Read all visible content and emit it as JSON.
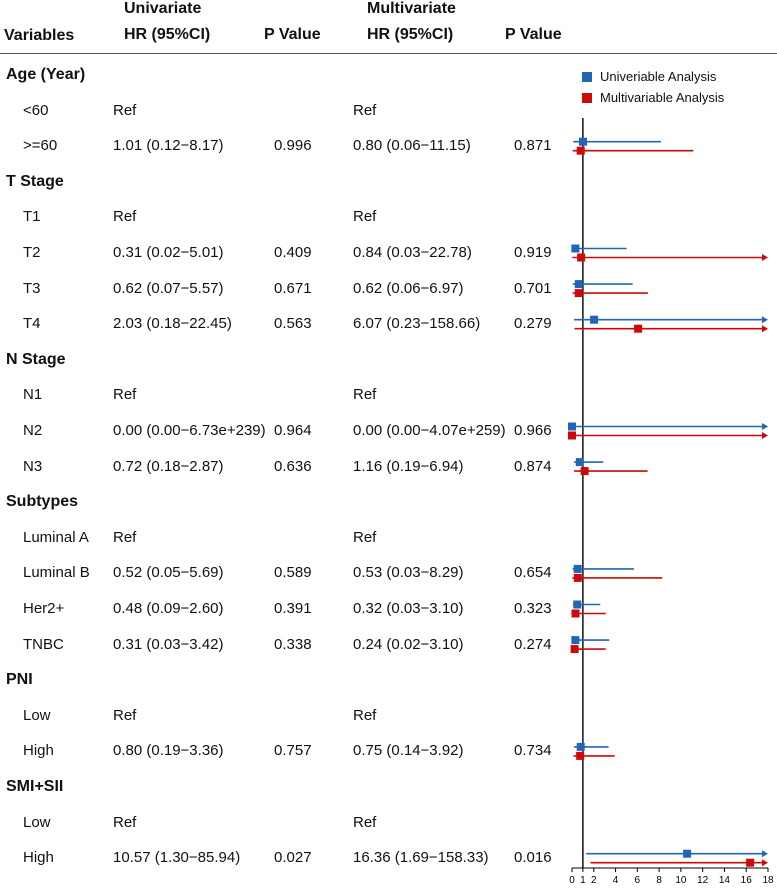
{
  "header": {
    "variables": "Variables",
    "univariate": "Univariate",
    "multivariate": "Multivariate",
    "uni_hr": "HR (95%CI)",
    "uni_p": "P Value",
    "multi_hr": "HR (95%CI)",
    "multi_p": "P Value"
  },
  "legend": {
    "uni_label": "Univeriable Analysis",
    "multi_label": "Multivariable Analysis",
    "uni_color": "#2166b5",
    "multi_color": "#cc0a0a"
  },
  "rows": [
    {
      "label": "Age (Year)",
      "type": "group"
    },
    {
      "label": "<60",
      "type": "sub",
      "uni_text": "Ref",
      "uni_p": "",
      "multi_text": "Ref",
      "multi_p": ""
    },
    {
      "label": ">=60",
      "type": "sub",
      "uni_text": "1.01 (0.12−8.17)",
      "uni_p": "0.996",
      "multi_text": "0.80 (0.06−11.15)",
      "multi_p": "0.871"
    },
    {
      "label": "T Stage",
      "type": "group"
    },
    {
      "label": "T1",
      "type": "sub",
      "uni_text": "Ref",
      "uni_p": "",
      "multi_text": "Ref",
      "multi_p": ""
    },
    {
      "label": "T2",
      "type": "sub",
      "uni_text": "0.31 (0.02−5.01)",
      "uni_p": "0.409",
      "multi_text": "0.84 (0.03−22.78)",
      "multi_p": "0.919"
    },
    {
      "label": "T3",
      "type": "sub",
      "uni_text": "0.62 (0.07−5.57)",
      "uni_p": "0.671",
      "multi_text": "0.62 (0.06−6.97)",
      "multi_p": "0.701"
    },
    {
      "label": "T4",
      "type": "sub",
      "uni_text": "2.03 (0.18−22.45)",
      "uni_p": "0.563",
      "multi_text": "6.07 (0.23−158.66)",
      "multi_p": "0.279"
    },
    {
      "label": "N Stage",
      "type": "group"
    },
    {
      "label": "N1",
      "type": "sub",
      "uni_text": "Ref",
      "uni_p": "",
      "multi_text": "Ref",
      "multi_p": ""
    },
    {
      "label": "N2",
      "type": "sub",
      "uni_text": "0.00 (0.00−6.73e+239)",
      "uni_p": "0.964",
      "multi_text": "0.00 (0.00−4.07e+259)",
      "multi_p": "0.966"
    },
    {
      "label": "N3",
      "type": "sub",
      "uni_text": "0.72 (0.18−2.87)",
      "uni_p": "0.636",
      "multi_text": "1.16 (0.19−6.94)",
      "multi_p": "0.874"
    },
    {
      "label": "Subtypes",
      "type": "group"
    },
    {
      "label": "Luminal A",
      "type": "sub",
      "uni_text": "Ref",
      "uni_p": "",
      "multi_text": "Ref",
      "multi_p": ""
    },
    {
      "label": "Luminal B",
      "type": "sub",
      "uni_text": "0.52 (0.05−5.69)",
      "uni_p": "0.589",
      "multi_text": "0.53 (0.03−8.29)",
      "multi_p": "0.654"
    },
    {
      "label": "Her2+",
      "type": "sub",
      "uni_text": "0.48 (0.09−2.60)",
      "uni_p": "0.391",
      "multi_text": "0.32 (0.03−3.10)",
      "multi_p": "0.323"
    },
    {
      "label": "TNBC",
      "type": "sub",
      "uni_text": "0.31 (0.03−3.42)",
      "uni_p": "0.338",
      "multi_text": "0.24 (0.02−3.10)",
      "multi_p": "0.274"
    },
    {
      "label": "PNI",
      "type": "group"
    },
    {
      "label": "Low",
      "type": "sub",
      "uni_text": "Ref",
      "uni_p": "",
      "multi_text": "Ref",
      "multi_p": ""
    },
    {
      "label": "High",
      "type": "sub",
      "uni_text": "0.80 (0.19−3.36)",
      "uni_p": "0.757",
      "multi_text": "0.75 (0.14−3.92)",
      "multi_p": "0.734"
    },
    {
      "label": "SMI+SII",
      "type": "group"
    },
    {
      "label": "Low",
      "type": "sub",
      "uni_text": "Ref",
      "uni_p": "",
      "multi_text": "Ref",
      "multi_p": ""
    },
    {
      "label": "High",
      "type": "sub",
      "uni_text": "10.57 (1.30−85.94)",
      "uni_p": "0.027",
      "multi_text": "16.36 (1.69−158.33)",
      "multi_p": "0.016"
    }
  ],
  "chart_data": {
    "type": "forest",
    "xlim": [
      0,
      18
    ],
    "reference_line": 1,
    "x_ticks": [
      0,
      1,
      2,
      4,
      6,
      8,
      10,
      12,
      14,
      16,
      18
    ],
    "x_tick_labels": [
      "0",
      "1",
      "2",
      "4",
      "6",
      "8",
      "10",
      "12",
      "14",
      "16",
      "18"
    ],
    "series": [
      {
        "name": "Univeriable Analysis",
        "color": "#2166b5",
        "points": [
          {
            "row": 2,
            "hr": 1.01,
            "lo": 0.12,
            "hi": 8.17
          },
          {
            "row": 5,
            "hr": 0.31,
            "lo": 0.02,
            "hi": 5.01
          },
          {
            "row": 6,
            "hr": 0.62,
            "lo": 0.07,
            "hi": 5.57
          },
          {
            "row": 7,
            "hr": 2.03,
            "lo": 0.18,
            "hi": 22.45
          },
          {
            "row": 10,
            "hr": 0.0,
            "lo": 0.0,
            "hi": 6.73e+239
          },
          {
            "row": 11,
            "hr": 0.72,
            "lo": 0.18,
            "hi": 2.87
          },
          {
            "row": 14,
            "hr": 0.52,
            "lo": 0.05,
            "hi": 5.69
          },
          {
            "row": 15,
            "hr": 0.48,
            "lo": 0.09,
            "hi": 2.6
          },
          {
            "row": 16,
            "hr": 0.31,
            "lo": 0.03,
            "hi": 3.42
          },
          {
            "row": 19,
            "hr": 0.8,
            "lo": 0.19,
            "hi": 3.36
          },
          {
            "row": 22,
            "hr": 10.57,
            "lo": 1.3,
            "hi": 85.94
          }
        ]
      },
      {
        "name": "Multivariable Analysis",
        "color": "#cc0a0a",
        "points": [
          {
            "row": 2,
            "hr": 0.8,
            "lo": 0.06,
            "hi": 11.15
          },
          {
            "row": 5,
            "hr": 0.84,
            "lo": 0.03,
            "hi": 22.78
          },
          {
            "row": 6,
            "hr": 0.62,
            "lo": 0.06,
            "hi": 6.97
          },
          {
            "row": 7,
            "hr": 6.07,
            "lo": 0.23,
            "hi": 158.66
          },
          {
            "row": 10,
            "hr": 0.0,
            "lo": 0.0,
            "hi": 4.07e+259
          },
          {
            "row": 11,
            "hr": 1.16,
            "lo": 0.19,
            "hi": 6.94
          },
          {
            "row": 14,
            "hr": 0.53,
            "lo": 0.03,
            "hi": 8.29
          },
          {
            "row": 15,
            "hr": 0.32,
            "lo": 0.03,
            "hi": 3.1
          },
          {
            "row": 16,
            "hr": 0.24,
            "lo": 0.02,
            "hi": 3.1
          },
          {
            "row": 19,
            "hr": 0.75,
            "lo": 0.14,
            "hi": 3.92
          },
          {
            "row": 22,
            "hr": 16.36,
            "lo": 1.69,
            "hi": 158.33
          }
        ]
      }
    ]
  }
}
